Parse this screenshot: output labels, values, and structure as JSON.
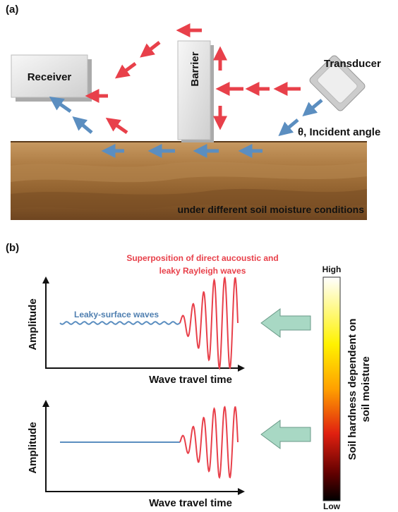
{
  "panel_a": {
    "label": "(a)",
    "receiver": "Receiver",
    "barrier": "Barrier",
    "transducer": "Transducer",
    "angle": "θ, Incident angle",
    "soil": "under different soil moisture conditions"
  },
  "panel_b": {
    "label": "(b)",
    "superposition": [
      "Superposition of direct aucoustic and",
      "leaky Rayleigh waves"
    ],
    "leaky": "Leaky-surface waves",
    "plots": [
      {
        "y_label": "Amplitude",
        "x_label": "Wave travel time"
      },
      {
        "y_label": "Amplitude",
        "x_label": "Wave travel time"
      }
    ],
    "colorbar": {
      "high": "High",
      "low": "Low",
      "title": [
        "Soil hardness dependent on",
        "soil moisture"
      ]
    }
  }
}
